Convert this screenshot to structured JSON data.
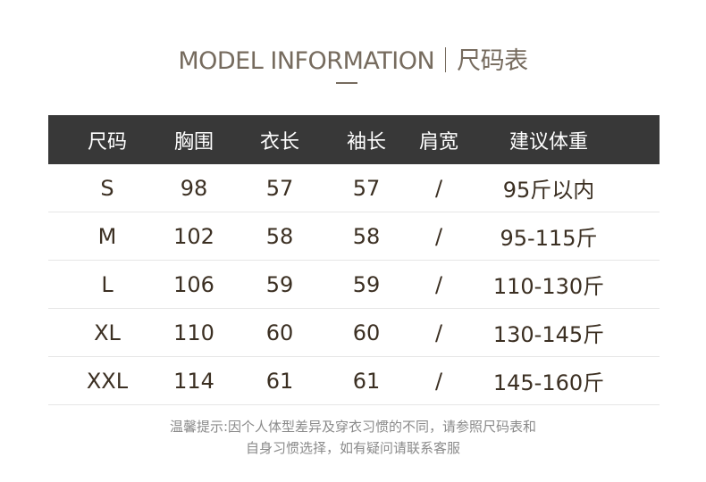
{
  "title": {
    "english": "MODEL INFORMATION",
    "chinese": "尺码表"
  },
  "table": {
    "headers": [
      "尺码",
      "胸围",
      "衣长",
      "袖长",
      "肩宽",
      "建议体重"
    ],
    "rows": [
      [
        "S",
        "98",
        "57",
        "57",
        "/",
        "95斤以内"
      ],
      [
        "M",
        "102",
        "58",
        "58",
        "/",
        "95-115斤"
      ],
      [
        "L",
        "106",
        "59",
        "59",
        "/",
        "110-130斤"
      ],
      [
        "XL",
        "110",
        "60",
        "60",
        "/",
        "130-145斤"
      ],
      [
        "XXL",
        "114",
        "61",
        "61",
        "/",
        "145-160斤"
      ]
    ]
  },
  "note": {
    "line1": "温馨提示:因个人体型差异及穿衣习惯的不同，请参照尺码表和",
    "line2": "自身习惯选择，如有疑问请联系客服"
  },
  "colors": {
    "header_bg": "#383838",
    "title": "#766b5e",
    "body_text": "#3b2f22"
  }
}
